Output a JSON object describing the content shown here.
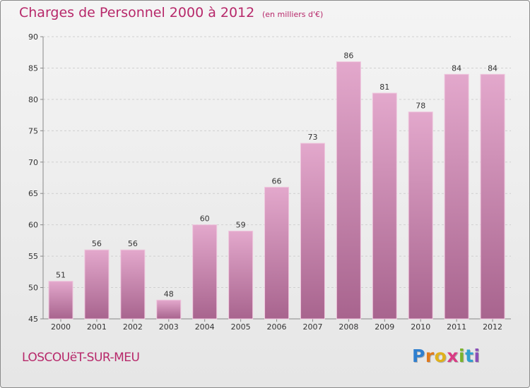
{
  "chart_data": {
    "type": "bar",
    "title": "Charges de Personnel 2000 à 2012",
    "subtitle": "(en milliers d'€)",
    "categories": [
      "2000",
      "2001",
      "2002",
      "2003",
      "2004",
      "2005",
      "2006",
      "2007",
      "2008",
      "2009",
      "2010",
      "2011",
      "2012"
    ],
    "values": [
      51,
      56,
      56,
      48,
      60,
      59,
      66,
      73,
      86,
      81,
      78,
      84,
      84
    ],
    "ylim": [
      45,
      90
    ],
    "yticks": [
      45,
      50,
      55,
      60,
      65,
      70,
      75,
      80,
      85,
      90
    ],
    "grid": true,
    "bar_color_top": "#e3a8cc",
    "bar_color_bottom": "#a8648e",
    "accent_color": "#b7286a"
  },
  "footer": {
    "town": "LOSCOUëT-SUR-MEU",
    "logo_letters": [
      "P",
      "r",
      "o",
      "x",
      "i",
      "t",
      "i"
    ],
    "logo_colors": [
      "#2f7fcf",
      "#e07a1c",
      "#e0b11c",
      "#d93b84",
      "#7ab42c",
      "#2f9fd0",
      "#8a4fb8"
    ]
  }
}
